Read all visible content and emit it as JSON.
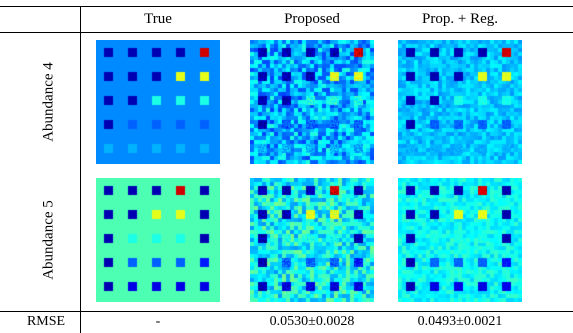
{
  "header": {
    "col_true": "True",
    "col_proposed": "Proposed",
    "col_propreg": "Prop. + Reg."
  },
  "rows": [
    {
      "label": "Abundance 4"
    },
    {
      "label": "Abundance 5"
    }
  ],
  "rmse": {
    "label": "RMSE",
    "true": "-",
    "proposed": "0.0530±0.0028",
    "propreg": "0.0493±0.0021"
  },
  "colors": {
    "abundance4_background": "#1456e6",
    "abundance5_background": "#2ef0d8"
  }
}
